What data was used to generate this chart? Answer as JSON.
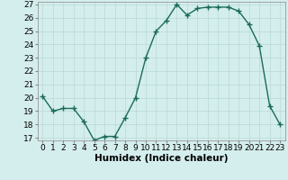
{
  "x": [
    0,
    1,
    2,
    3,
    4,
    5,
    6,
    7,
    8,
    9,
    10,
    11,
    12,
    13,
    14,
    15,
    16,
    17,
    18,
    19,
    20,
    21,
    22,
    23
  ],
  "y": [
    20.1,
    19.0,
    19.2,
    19.2,
    18.2,
    16.8,
    17.1,
    17.1,
    18.5,
    20.0,
    23.0,
    25.0,
    25.8,
    27.0,
    26.2,
    26.7,
    26.8,
    26.8,
    26.8,
    26.5,
    25.5,
    23.9,
    19.4,
    18.0
  ],
  "line_color": "#1a6b5a",
  "marker": "+",
  "marker_size": 4,
  "bg_color": "#d4eeed",
  "grid_color": "#b8d8d5",
  "xlabel": "Humidex (Indice chaleur)",
  "ylim": [
    17,
    27
  ],
  "xlim": [
    -0.5,
    23.5
  ],
  "yticks": [
    17,
    18,
    19,
    20,
    21,
    22,
    23,
    24,
    25,
    26,
    27
  ],
  "xticks": [
    0,
    1,
    2,
    3,
    4,
    5,
    6,
    7,
    8,
    9,
    10,
    11,
    12,
    13,
    14,
    15,
    16,
    17,
    18,
    19,
    20,
    21,
    22,
    23
  ],
  "xlabel_fontsize": 7.5,
  "tick_fontsize": 6.5,
  "linewidth": 1.0,
  "marker_linewidth": 1.0
}
